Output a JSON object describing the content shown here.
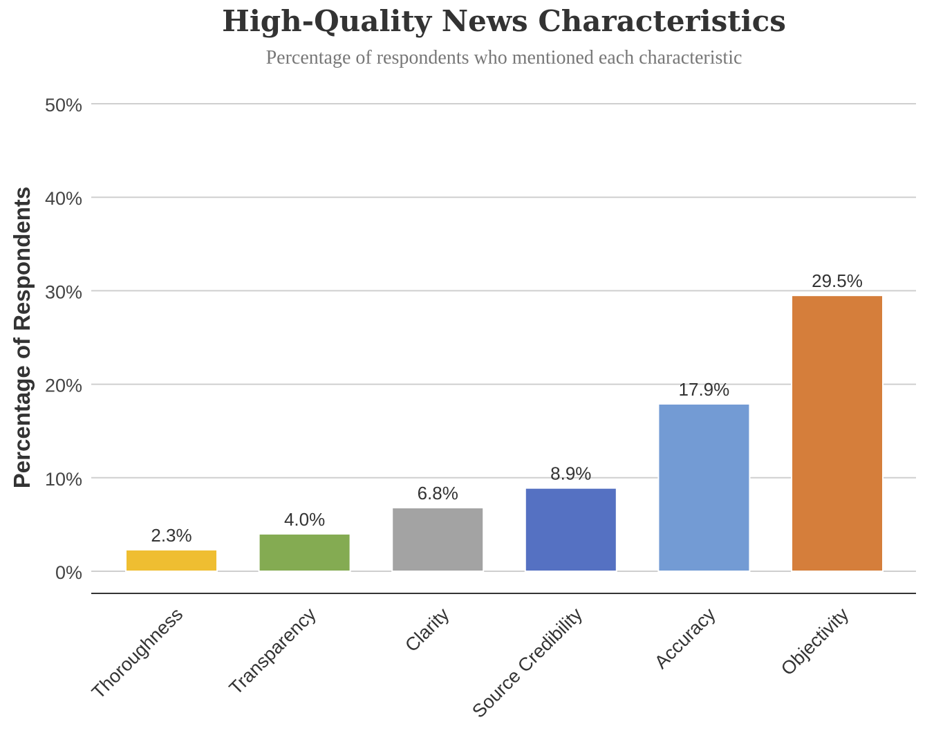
{
  "chart_data": {
    "type": "bar",
    "title": "High-Quality News Characteristics",
    "subtitle": "Percentage of respondents who mentioned each characteristic",
    "xlabel": "",
    "ylabel": "Percentage of Respondents",
    "categories": [
      "Thoroughness",
      "Transparency",
      "Clarity",
      "Source Credibility",
      "Accuracy",
      "Objectivity"
    ],
    "values": [
      2.3,
      4.0,
      6.8,
      8.9,
      17.9,
      29.5
    ],
    "data_labels": [
      "2.3%",
      "4.0%",
      "6.8%",
      "8.9%",
      "17.9%",
      "29.5%"
    ],
    "colors": [
      "#EFBE31",
      "#84AB52",
      "#A3A3A3",
      "#5571C2",
      "#739BD4",
      "#D57E3B"
    ],
    "ylim": [
      0,
      50
    ],
    "yticks": [
      0,
      10,
      20,
      30,
      40,
      50
    ],
    "ytick_labels": [
      "0%",
      "10%",
      "20%",
      "30%",
      "40%",
      "50%"
    ],
    "grid": true,
    "legend": "none"
  }
}
